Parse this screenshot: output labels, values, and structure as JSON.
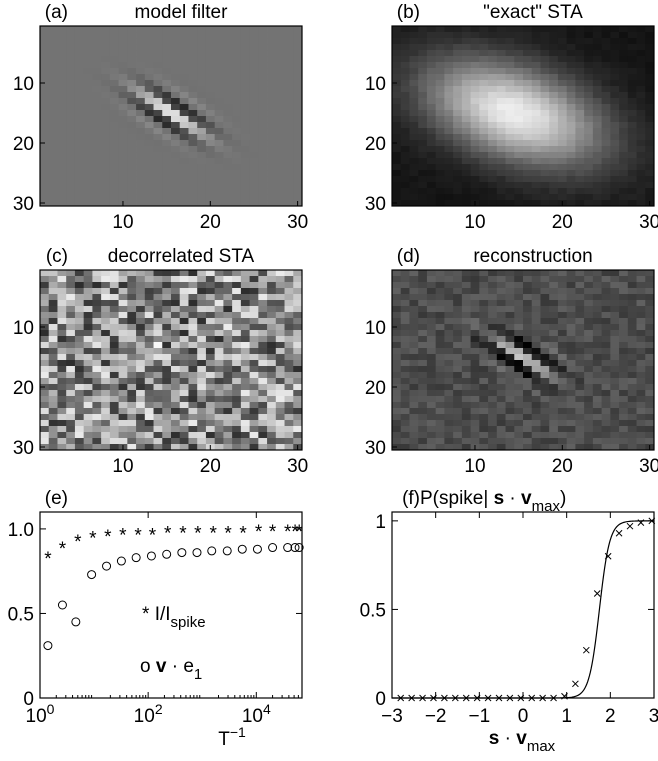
{
  "chart_data": [
    {
      "panel": "(a)",
      "type": "heatmap",
      "title": "model filter",
      "grid_size": 30,
      "pattern": "oriented-gabor",
      "background_gray": 0.45,
      "x_ticks": [
        "10",
        "20",
        "30"
      ],
      "y_ticks": [
        "10",
        "20",
        "30"
      ],
      "xlim": [
        0.5,
        30.5
      ],
      "ylim": [
        0.5,
        30.5
      ]
    },
    {
      "panel": "(b)",
      "type": "heatmap",
      "title": "\"exact\" STA",
      "grid_size": 30,
      "pattern": "broad-blob",
      "background_gray": 0.35,
      "x_ticks": [
        "10",
        "20",
        "30"
      ],
      "y_ticks": [
        "10",
        "20",
        "30"
      ],
      "xlim": [
        0.5,
        30.5
      ],
      "ylim": [
        0.5,
        30.5
      ]
    },
    {
      "panel": "(c)",
      "type": "heatmap",
      "title": "decorrelated STA",
      "grid_size": 30,
      "pattern": "noise",
      "background_gray": 0.55,
      "x_ticks": [
        "10",
        "20",
        "30"
      ],
      "y_ticks": [
        "10",
        "20",
        "30"
      ],
      "xlim": [
        0.5,
        30.5
      ],
      "ylim": [
        0.5,
        30.5
      ]
    },
    {
      "panel": "(d)",
      "type": "heatmap",
      "title": "reconstruction",
      "grid_size": 30,
      "pattern": "gabor-noise",
      "background_gray": 0.3,
      "x_ticks": [
        "10",
        "20",
        "30"
      ],
      "y_ticks": [
        "10",
        "20",
        "30"
      ],
      "xlim": [
        0.5,
        30.5
      ],
      "ylim": [
        0.5,
        30.5
      ]
    },
    {
      "panel": "(e)",
      "type": "scatter",
      "x_scale": "log",
      "xlim": [
        1,
        70000
      ],
      "ylim": [
        0,
        1.1
      ],
      "xlabel_base": "T",
      "xlabel_sup": "−1",
      "x_tick_values": [
        1,
        100,
        10000
      ],
      "x_ticks_base": [
        "10",
        "10",
        "10"
      ],
      "x_ticks_sup": [
        "0",
        "2",
        "4"
      ],
      "y_tick_values": [
        0,
        0.5,
        1.0
      ],
      "y_ticks": [
        "0",
        "0.5",
        "1.0"
      ],
      "series": [
        {
          "marker": "asterisk",
          "x": [
            1.4,
            2.6,
            5.0,
            9.5,
            18,
            34,
            65,
            120,
            230,
            440,
            830,
            1600,
            3000,
            5700,
            11000,
            20000,
            38000,
            52000,
            62000
          ],
          "y": [
            0.84,
            0.9,
            0.94,
            0.96,
            0.97,
            0.98,
            0.98,
            0.98,
            0.99,
            0.99,
            0.99,
            0.99,
            0.99,
            0.99,
            1.0,
            1.0,
            1.0,
            1.0,
            1.0
          ]
        },
        {
          "marker": "circle",
          "x": [
            1.4,
            2.6,
            4.6,
            9.0,
            17,
            32,
            60,
            115,
            220,
            420,
            800,
            1500,
            2900,
            5500,
            10500,
            20000,
            38000,
            52000,
            62000
          ],
          "y": [
            0.31,
            0.55,
            0.45,
            0.73,
            0.78,
            0.81,
            0.83,
            0.84,
            0.85,
            0.86,
            0.86,
            0.87,
            0.87,
            0.88,
            0.88,
            0.89,
            0.89,
            0.89,
            0.89
          ]
        }
      ],
      "annotations": [
        {
          "prefix": "*",
          "text": "I/I",
          "sub": "spike"
        },
        {
          "prefix": "o",
          "bold": "v",
          "mid": "· e",
          "sub": "1"
        }
      ]
    },
    {
      "panel": "(f)",
      "type": "line",
      "title_main": "P(spike|",
      "title_bold": "s",
      "title_mid": "·",
      "title_bold2": "v",
      "title_sub": "max",
      "title_end": ")",
      "xlim": [
        -3,
        3
      ],
      "ylim": [
        0,
        1.05
      ],
      "x_tick_values": [
        -3,
        -2,
        -1,
        0,
        1,
        2,
        3
      ],
      "x_ticks": [
        "−3",
        "−2",
        "−1",
        "0",
        "1",
        "2",
        "3"
      ],
      "y_tick_values": [
        0,
        0.5,
        1
      ],
      "y_ticks": [
        "0",
        "0.5",
        "1"
      ],
      "xlabel_bold": "s",
      "xlabel_mid": "·",
      "xlabel_bold2": "v",
      "xlabel_sub": "max",
      "sigmoid": {
        "center": 1.75,
        "slope": 8.5
      },
      "points": {
        "marker": "x",
        "x": [
          -2.8,
          -2.55,
          -2.3,
          -2.05,
          -1.8,
          -1.55,
          -1.3,
          -1.05,
          -0.8,
          -0.55,
          -0.3,
          -0.05,
          0.2,
          0.45,
          0.7,
          0.95,
          1.2,
          1.45,
          1.7,
          1.95,
          2.2,
          2.45,
          2.7,
          2.95
        ],
        "y": [
          0,
          0,
          0,
          0,
          0,
          0,
          0,
          0,
          0,
          0,
          0,
          0,
          0,
          0,
          0,
          0.01,
          0.08,
          0.27,
          0.59,
          0.8,
          0.93,
          0.97,
          0.99,
          1.0
        ]
      }
    }
  ]
}
